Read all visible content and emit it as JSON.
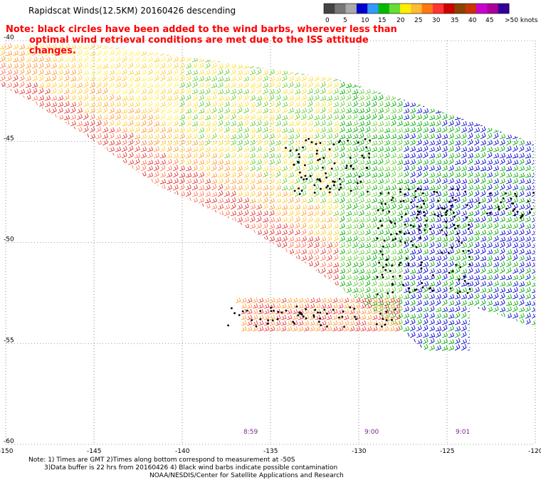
{
  "title": "Rapidscat Winds(12.5KM) 20160426 descending",
  "note_line1": "Note: black circles have been added to the wind barbs, wherever less than",
  "note_line2": "optimal wind retrieval conditions are met due to the ISS attitude changes.",
  "color_scale": {
    "labels": [
      "0",
      "5",
      "10",
      "15",
      "20",
      "25",
      "30",
      "35",
      "40",
      "45",
      ">50 knots"
    ],
    "colors": [
      "#444444",
      "#777777",
      "#aaaaaa",
      "#0000cc",
      "#3399ff",
      "#00bb00",
      "#66dd33",
      "#ffee00",
      "#ffbb33",
      "#ff7711",
      "#ff3333",
      "#cc0000",
      "#884400",
      "#cc3300",
      "#cc00cc",
      "#aa0099",
      "#330099"
    ]
  },
  "lat_labels": [
    "-40",
    "-45",
    "-50",
    "-55",
    "-60"
  ],
  "lon_labels": [
    "-150",
    "-145",
    "-140",
    "-135",
    "-130",
    "-125",
    "-120"
  ],
  "time_labels": [
    "8:59",
    "9:00",
    "9:01"
  ],
  "footer_line1": "Note: 1) Times are GMT 2)Times along bottom correspond to measurement at -50S",
  "footer_line2": "3)Data buffer is 22 hrs from 20160426 4) Black wind barbs indicate possible contamination",
  "footer_line3": "NOAA/NESDIS/Center for Satellite Applications and Research",
  "map": {
    "lon_range": [
      -150,
      -120
    ],
    "lat_range": [
      -60,
      -40
    ]
  }
}
